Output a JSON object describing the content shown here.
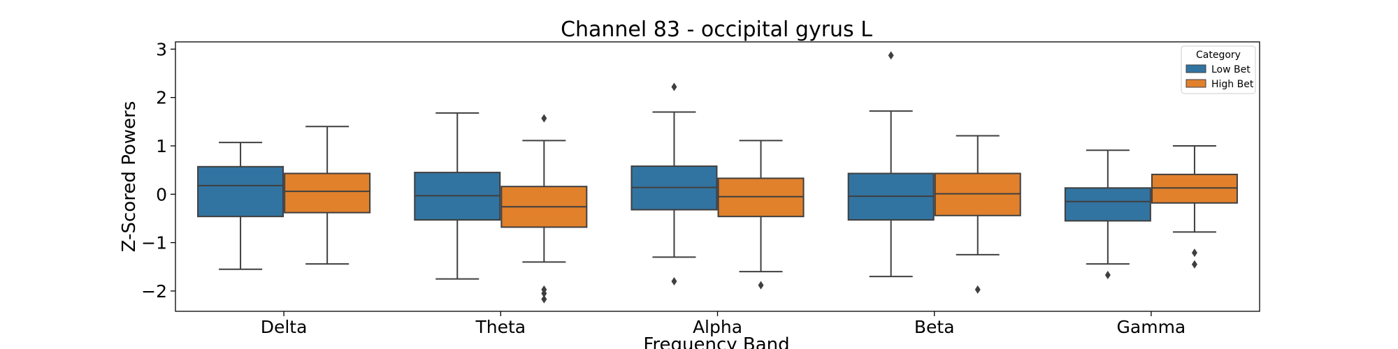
{
  "chart_data": {
    "type": "box",
    "title": "Channel 83 - occipital gyrus L",
    "xlabel": "Frequency Band",
    "ylabel": "Z-Scored Powers",
    "ylim": [
      -2.42,
      3.15
    ],
    "yticks": [
      3,
      2,
      1,
      0,
      -1,
      -2
    ],
    "ytick_labels": [
      "3",
      "2",
      "1",
      "0",
      "−1",
      "−2"
    ],
    "categories": [
      "Delta",
      "Theta",
      "Alpha",
      "Beta",
      "Gamma"
    ],
    "legend": {
      "title": "Category",
      "position": "top-right"
    },
    "series": [
      {
        "name": "Low Bet",
        "color": "#3274a1",
        "boxes": [
          {
            "whislo": -1.55,
            "q1": -0.46,
            "med": 0.18,
            "q3": 0.57,
            "whishi": 1.07,
            "fliers": []
          },
          {
            "whislo": -1.75,
            "q1": -0.53,
            "med": -0.03,
            "q3": 0.45,
            "whishi": 1.68,
            "fliers": []
          },
          {
            "whislo": -1.3,
            "q1": -0.32,
            "med": 0.14,
            "q3": 0.58,
            "whishi": 1.7,
            "fliers": [
              2.22,
              -1.8
            ]
          },
          {
            "whislo": -1.7,
            "q1": -0.53,
            "med": -0.04,
            "q3": 0.43,
            "whishi": 1.72,
            "fliers": [
              2.87
            ]
          },
          {
            "whislo": -1.44,
            "q1": -0.55,
            "med": -0.15,
            "q3": 0.13,
            "whishi": 0.91,
            "fliers": [
              -1.67
            ]
          }
        ]
      },
      {
        "name": "High Bet",
        "color": "#e1812c",
        "boxes": [
          {
            "whislo": -1.44,
            "q1": -0.38,
            "med": 0.06,
            "q3": 0.43,
            "whishi": 1.4,
            "fliers": []
          },
          {
            "whislo": -1.4,
            "q1": -0.68,
            "med": -0.26,
            "q3": 0.16,
            "whishi": 1.11,
            "fliers": [
              1.57,
              -1.97,
              -2.05,
              -2.17
            ]
          },
          {
            "whislo": -1.6,
            "q1": -0.46,
            "med": -0.05,
            "q3": 0.33,
            "whishi": 1.11,
            "fliers": [
              -1.88
            ]
          },
          {
            "whislo": -1.25,
            "q1": -0.44,
            "med": 0.01,
            "q3": 0.43,
            "whishi": 1.21,
            "fliers": [
              -1.97
            ]
          },
          {
            "whislo": -0.78,
            "q1": -0.18,
            "med": 0.13,
            "q3": 0.41,
            "whishi": 1.0,
            "fliers": [
              -1.21,
              -1.45
            ]
          }
        ]
      }
    ],
    "grid": false
  }
}
